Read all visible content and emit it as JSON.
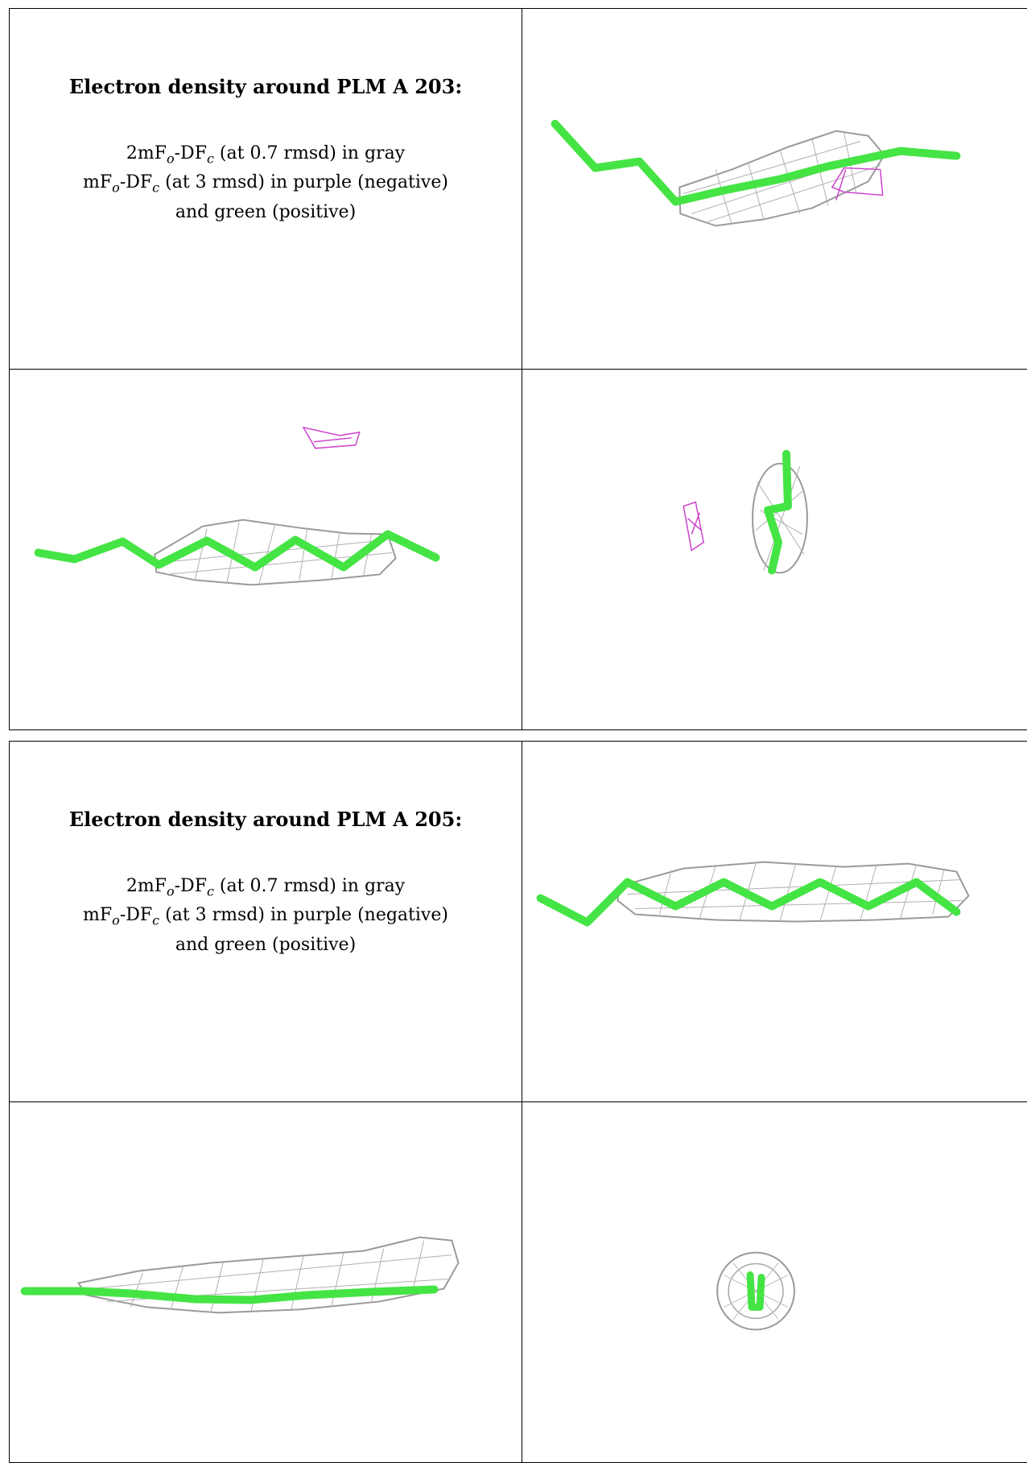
{
  "blocks": [
    {
      "heading": "Electron density around PLM A 203:",
      "line1_a": "2mF",
      "line1_sub1": "o",
      "line1_b": "-DF",
      "line1_sub2": "c",
      "line1_c": " (at 0.7 rmsd) in gray",
      "line2_a": "mF",
      "line2_sub1": "o",
      "line2_b": "-DF",
      "line2_sub2": "c",
      "line2_c": " (at 3 rmsd) in purple (negative)",
      "line3": "and green (positive)"
    },
    {
      "heading": "Electron density around PLM A 205:",
      "line1_a": "2mF",
      "line1_sub1": "o",
      "line1_b": "-DF",
      "line1_sub2": "c",
      "line1_c": " (at 0.7 rmsd) in gray",
      "line2_a": "mF",
      "line2_sub1": "o",
      "line2_b": "-DF",
      "line2_sub2": "c",
      "line2_c": " (at 3 rmsd) in purple (negative)",
      "line3": "and green (positive)"
    }
  ],
  "colors": {
    "ligand_stick": "#44e444",
    "density_2fofc": "#9a9a9a",
    "density_negative": "#cc44cc"
  }
}
